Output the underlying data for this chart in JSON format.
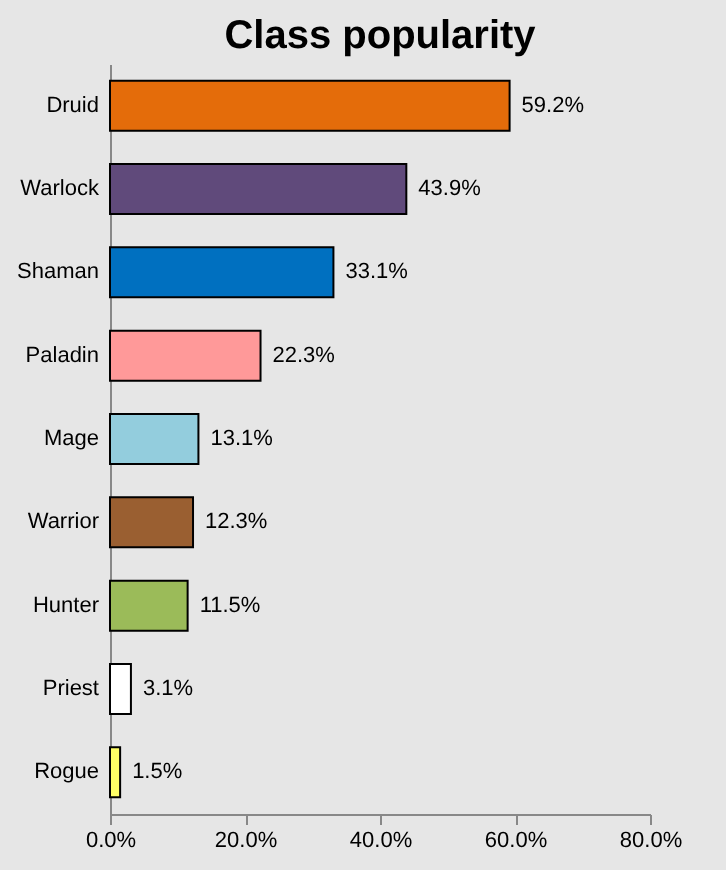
{
  "chart_data": {
    "type": "bar",
    "orientation": "horizontal",
    "title": "Class popularity",
    "categories": [
      "Druid",
      "Warlock",
      "Shaman",
      "Paladin",
      "Mage",
      "Warrior",
      "Hunter",
      "Priest",
      "Rogue"
    ],
    "values": [
      59.2,
      43.9,
      33.1,
      22.3,
      13.1,
      12.3,
      11.5,
      3.1,
      1.5
    ],
    "colors": [
      "#e46c0a",
      "#604a7b",
      "#0070c0",
      "#ff9999",
      "#93cddd",
      "#9a5f31",
      "#9bbb59",
      "#ffffff",
      "#ffff66"
    ],
    "value_labels": [
      "59.2%",
      "43.9%",
      "33.1%",
      "22.3%",
      "13.1%",
      "12.3%",
      "11.5%",
      "3.1%",
      "1.5%"
    ],
    "xlim": [
      0,
      80
    ],
    "xticks": [
      {
        "value": 0,
        "label": "0.0%"
      },
      {
        "value": 20,
        "label": "20.0%"
      },
      {
        "value": 40,
        "label": "40.0%"
      },
      {
        "value": 60,
        "label": "60.0%"
      },
      {
        "value": 80,
        "label": "80.0%"
      }
    ],
    "grid": false
  }
}
